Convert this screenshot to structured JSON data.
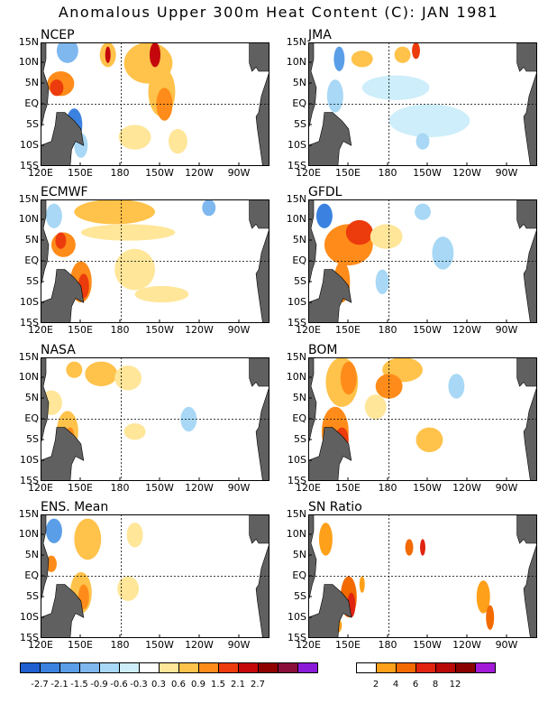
{
  "title": "Anomalous Upper 300m Heat Content (C): JAN 1981",
  "panels": [
    {
      "name": "NCEP"
    },
    {
      "name": "JMA"
    },
    {
      "name": "ECMWF"
    },
    {
      "name": "GFDL"
    },
    {
      "name": "NASA"
    },
    {
      "name": "BOM"
    },
    {
      "name": "ENS. Mean"
    },
    {
      "name": "SN Ratio"
    }
  ],
  "lat_labels": [
    "15N",
    "10N",
    "5N",
    "EQ",
    "5S",
    "10S",
    "15S"
  ],
  "lon_labels": [
    "120E",
    "150E",
    "180",
    "150W",
    "120W",
    "90W"
  ],
  "colorbar_main": {
    "colors": [
      "#1f5fd0",
      "#3b82e0",
      "#5a9ee8",
      "#7fb8ef",
      "#a8d8f5",
      "#cdeefa",
      "#ffffff",
      "#ffe699",
      "#ffc24a",
      "#ff8c1a",
      "#ec3b0c",
      "#c4070a",
      "#8f0000",
      "#8a0d3a",
      "#8a1ad8"
    ],
    "labels": [
      "-2.7",
      "-2.1",
      "-1.5",
      "-0.9",
      "-0.6",
      "-0.3",
      "0.3",
      "0.6",
      "0.9",
      "1.5",
      "2.1",
      "2.7"
    ]
  },
  "colorbar_sn": {
    "colors": [
      "#ffffff",
      "#ffa01a",
      "#f26a00",
      "#e02410",
      "#b80808",
      "#8a0000",
      "#a21ad8"
    ],
    "labels": [
      "2",
      "4",
      "6",
      "8",
      "12"
    ]
  },
  "colors": {
    "land": "#606060",
    "coast": "#000000",
    "grid": "#000000"
  }
}
